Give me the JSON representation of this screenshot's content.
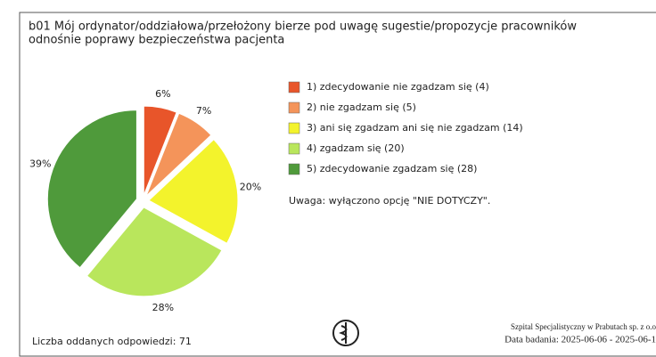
{
  "chart_data": {
    "type": "pie",
    "title": [
      "b01 Mój ordynator/oddziałowa/przełożony bierze pod uwagę sugestie/propozycje pracowników",
      "odnośnie poprawy bezpieczeństwa pacjenta"
    ],
    "categories": [
      "1) zdecydowanie nie zgadzam się (4)",
      "2) nie zgadzam się (5)",
      "3) ani się zgadzam ani się nie zgadzam (14)",
      "4) zgadzam się (20)",
      "5) zdecydowanie zgadzam się (28)"
    ],
    "values": [
      6,
      7,
      20,
      28,
      39
    ],
    "value_labels": [
      "6%",
      "7%",
      "20%",
      "28%",
      "39%"
    ],
    "colors": [
      "#e8552a",
      "#f4945a",
      "#f3f32c",
      "#b9e65c",
      "#4f9a3b"
    ],
    "note": "Uwaga: wyłączono opcję \"NIE DOTYCZY\".",
    "footer_left": "Liczba oddanych odpowiedzi: 71",
    "footer_right": [
      "Szpital Specjalistyczny w Prabutach sp. z o.o",
      "Data badania: 2025-06-06 - 2025-06-1"
    ]
  }
}
